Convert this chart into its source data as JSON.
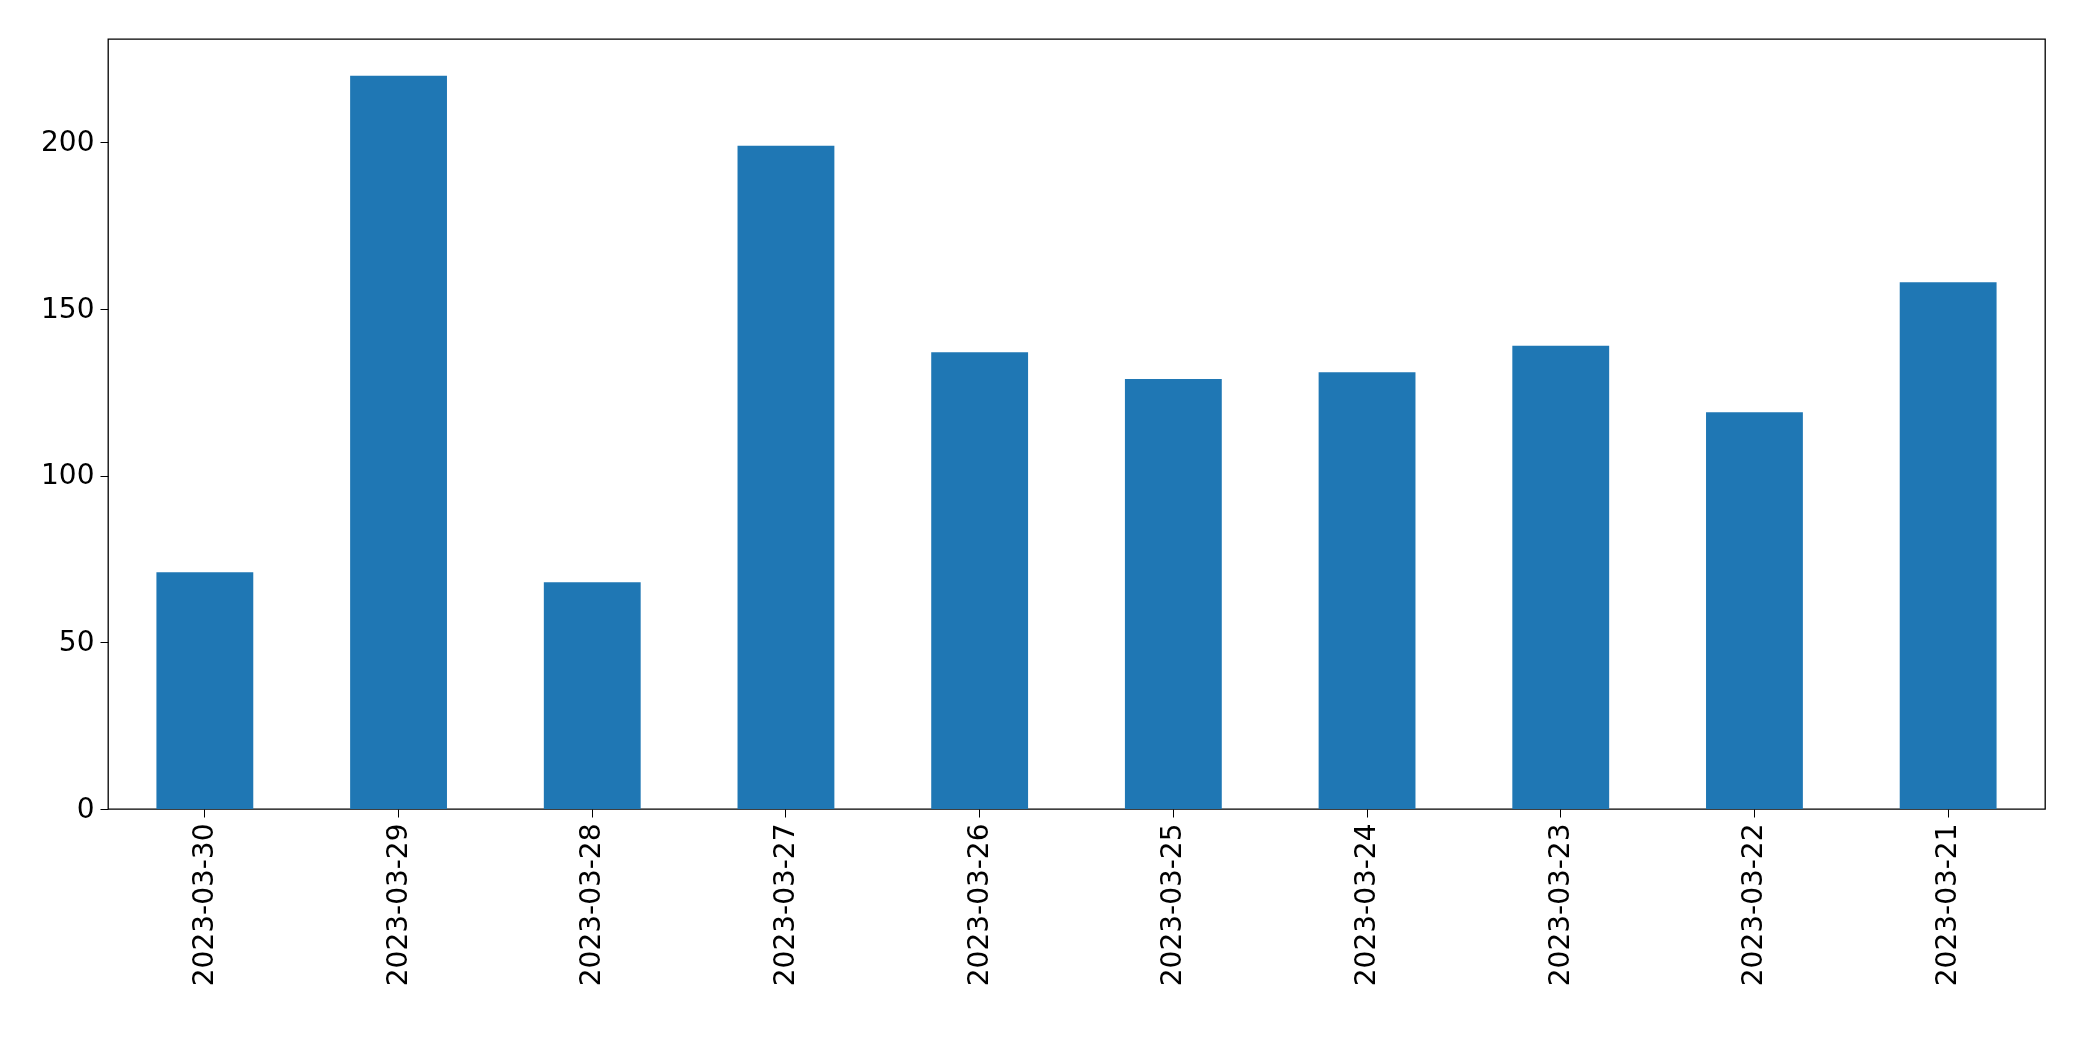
{
  "chart_data": {
    "type": "bar",
    "categories": [
      "2023-03-30",
      "2023-03-29",
      "2023-03-28",
      "2023-03-27",
      "2023-03-26",
      "2023-03-25",
      "2023-03-24",
      "2023-03-23",
      "2023-03-22",
      "2023-03-21"
    ],
    "values": [
      71,
      220,
      68,
      199,
      137,
      129,
      131,
      139,
      119,
      158
    ],
    "color": "#1f77b4",
    "ylim": [
      0,
      231
    ],
    "yticks": [
      0,
      50,
      100,
      150,
      200
    ],
    "grid": false
  }
}
